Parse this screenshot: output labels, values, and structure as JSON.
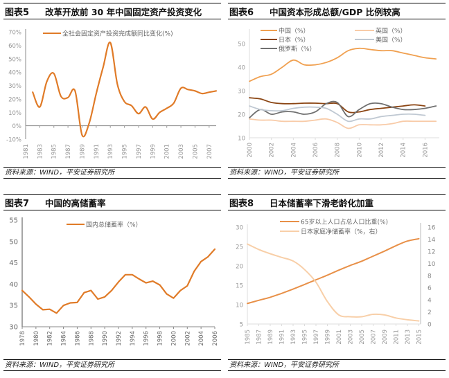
{
  "panels": [
    {
      "num": "图表5",
      "title": "改革开放前 30 年中国固定资产投资变化",
      "source": "资料来源：WIND，平安证券研究所"
    },
    {
      "num": "图表6",
      "title": "中国资本形成总额/GDP 比例较高",
      "source": "资料来源：WIND，平安证券研究所"
    },
    {
      "num": "图表7",
      "title": "中国的高储蓄率",
      "source": "资料来源：WIND，平安证券研究所"
    },
    {
      "num": "图表8",
      "title": "日本储蓄率下滑老龄化加重",
      "source": "资料来源：WIND，平安证券研究所"
    }
  ],
  "chart_data": [
    {
      "type": "line",
      "title": "改革开放前 30 年中国固定资产投资变化",
      "xlabel": "",
      "ylabel": "",
      "ylim": [
        -10,
        70
      ],
      "yticks": [
        "-10%",
        "0%",
        "10%",
        "20%",
        "30%",
        "40%",
        "50%",
        "60%",
        "70%"
      ],
      "xticks": [
        "1981",
        "1983",
        "1985",
        "1987",
        "1989",
        "1991",
        "1993",
        "1995",
        "1997",
        "1999",
        "2001",
        "2003",
        "2005",
        "2007"
      ],
      "x": [
        1982,
        1983,
        1984,
        1985,
        1986,
        1987,
        1988,
        1989,
        1990,
        1991,
        1992,
        1993,
        1994,
        1995,
        1996,
        1997,
        1998,
        1999,
        2000,
        2001,
        2002,
        2003,
        2004,
        2005,
        2006,
        2007,
        2008
      ],
      "series": [
        {
          "name": "全社会固定资产投资完成额同比变化(%)",
          "color": "#E07B28",
          "values": [
            25,
            14,
            33,
            39,
            22,
            21,
            26,
            -7,
            2,
            24,
            44,
            62,
            31,
            18,
            15,
            9,
            14,
            5,
            10,
            13,
            17,
            28,
            27,
            26,
            24,
            25,
            26
          ]
        }
      ],
      "legend": "top"
    },
    {
      "type": "line",
      "title": "中国资本形成总额/GDP 比例较高",
      "xlabel": "",
      "ylabel": "",
      "ylim": [
        10,
        55
      ],
      "yticks": [
        "10",
        "20",
        "30",
        "40",
        "50"
      ],
      "xticks": [
        "2000",
        "2002",
        "2004",
        "2006",
        "2008",
        "2010",
        "2012",
        "2014",
        "2016"
      ],
      "x": [
        2000,
        2001,
        2002,
        2003,
        2004,
        2005,
        2006,
        2007,
        2008,
        2009,
        2010,
        2011,
        2012,
        2013,
        2014,
        2015,
        2016,
        2017
      ],
      "series": [
        {
          "name": "中国（%）",
          "color": "#F0A050",
          "values": [
            34,
            36,
            37,
            40,
            43,
            41,
            41,
            42,
            44,
            47,
            48,
            47.5,
            47,
            47,
            46,
            45,
            44,
            43.5
          ]
        },
        {
          "name": "日本（%）",
          "color": "#8B4513",
          "values": [
            27,
            26.5,
            25,
            24.5,
            24.5,
            24.7,
            24.7,
            24.5,
            24.5,
            21,
            21,
            22,
            22.5,
            23,
            23.5,
            24,
            23.5,
            null
          ]
        },
        {
          "name": "俄罗斯（%）",
          "color": "#707070",
          "values": [
            18.5,
            22,
            20,
            21,
            21,
            20,
            21,
            24.5,
            25,
            19,
            22,
            24.5,
            24.5,
            23,
            22,
            22,
            22.5,
            23.5
          ]
        },
        {
          "name": "英国（%）",
          "color": "#F8CBA8",
          "values": [
            18,
            17.5,
            17.5,
            17,
            17,
            17,
            17.5,
            18,
            16.5,
            14,
            15.5,
            15.5,
            15.5,
            16,
            17,
            17,
            17,
            17
          ]
        },
        {
          "name": "美国（%）",
          "color": "#BFC8D2",
          "values": [
            23.5,
            22,
            21.5,
            21.5,
            22.5,
            23,
            23,
            22.5,
            20,
            17,
            18,
            18,
            19,
            19.5,
            20,
            20,
            19.5,
            null
          ]
        }
      ],
      "legend": "top"
    },
    {
      "type": "line",
      "title": "中国的高储蓄率",
      "xlabel": "",
      "ylabel": "",
      "ylim": [
        30,
        55
      ],
      "yticks": [
        "30",
        "35",
        "40",
        "45",
        "50",
        "55"
      ],
      "xticks": [
        "1978",
        "1980",
        "1982",
        "1984",
        "1986",
        "1988",
        "1990",
        "1992",
        "1994",
        "1996",
        "1998",
        "2000",
        "2002",
        "2004",
        "2006"
      ],
      "x": [
        1978,
        1979,
        1980,
        1981,
        1982,
        1983,
        1984,
        1985,
        1986,
        1987,
        1988,
        1989,
        1990,
        1991,
        1992,
        1993,
        1994,
        1995,
        1996,
        1997,
        1998,
        1999,
        2000,
        2001,
        2002,
        2003,
        2004,
        2005,
        2006
      ],
      "series": [
        {
          "name": "国内总储蓄率（%）",
          "color": "#E07B28",
          "values": [
            38.5,
            37,
            35.3,
            34,
            34.1,
            33.2,
            35,
            35.6,
            35.7,
            38,
            38.5,
            36.5,
            37,
            38.5,
            40.5,
            42.2,
            42.2,
            41.2,
            40.3,
            40.7,
            39.8,
            37.7,
            36.7,
            38.5,
            39.6,
            43,
            45.3,
            46.4,
            48.2
          ]
        }
      ],
      "legend": "top"
    },
    {
      "type": "line",
      "title": "日本储蓄率下滑老龄化加重",
      "xlabel": "",
      "ylabel": "",
      "ylim": [
        5,
        30
      ],
      "y2lim": [
        0,
        16
      ],
      "yticks": [
        "5",
        "10",
        "15",
        "20",
        "25",
        "30"
      ],
      "y2ticks": [
        "0",
        "2",
        "4",
        "6",
        "8",
        "10",
        "12",
        "14",
        "16"
      ],
      "xticks": [
        "1985",
        "1987",
        "1989",
        "1991",
        "1993",
        "1995",
        "1997",
        "1999",
        "2001",
        "2003",
        "2005",
        "2007",
        "2009",
        "2011",
        "2013",
        "2015"
      ],
      "x": [
        1985,
        1987,
        1989,
        1991,
        1993,
        1995,
        1997,
        1999,
        2001,
        2003,
        2005,
        2007,
        2009,
        2011,
        2013,
        2015
      ],
      "series": [
        {
          "name": "65岁以上人口占总人口比重(%)",
          "color": "#E89048",
          "axis": "left",
          "values": [
            10.3,
            11.1,
            11.9,
            12.9,
            14.0,
            15.2,
            16.4,
            17.6,
            18.9,
            20.1,
            21.2,
            22.5,
            23.8,
            25.2,
            26.4,
            27.0
          ]
        },
        {
          "name": "日本家庭净储蓄率（%，右）",
          "color": "#F8CFA8",
          "axis": "right",
          "values": [
            13.2,
            12.3,
            11.6,
            11.0,
            10.4,
            9.0,
            6.9,
            3.7,
            1.5,
            1.2,
            1.2,
            1.6,
            1.5,
            1.0,
            0.7,
            0.5
          ]
        }
      ],
      "legend": "top"
    }
  ]
}
